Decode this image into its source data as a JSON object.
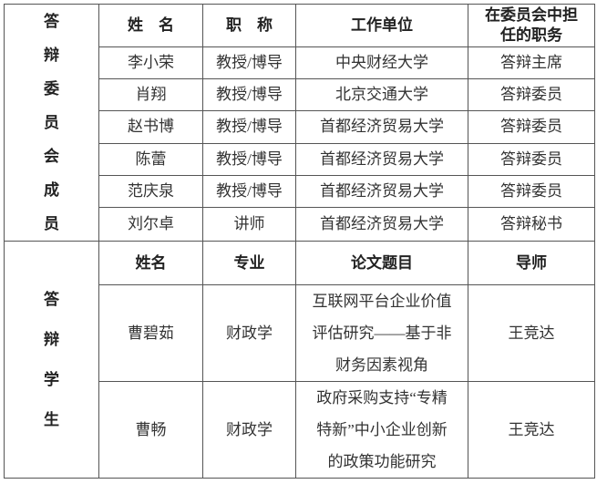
{
  "committee": {
    "section_label": [
      "答",
      "辩",
      "委",
      "员",
      "会",
      "成",
      "员"
    ],
    "headers": [
      "姓　名",
      "职　称",
      "工作单位",
      "在委员会中担任的职务"
    ],
    "rows": [
      [
        "李小荣",
        "教授/博导",
        "中央财经大学",
        "答辩主席"
      ],
      [
        "肖翔",
        "教授/博导",
        "北京交通大学",
        "答辩委员"
      ],
      [
        "赵书博",
        "教授/博导",
        "首都经济贸易大学",
        "答辩委员"
      ],
      [
        "陈蕾",
        "教授/博导",
        "首都经济贸易大学",
        "答辩委员"
      ],
      [
        "范庆泉",
        "教授/博导",
        "首都经济贸易大学",
        "答辩委员"
      ],
      [
        "刘尔卓",
        "讲师",
        "首都经济贸易大学",
        "答辩秘书"
      ]
    ]
  },
  "students": {
    "section_label": [
      "答",
      "辩",
      "学",
      "生"
    ],
    "headers": [
      "姓名",
      "专业",
      "论文题目",
      "导师"
    ],
    "rows": [
      {
        "name": "曹碧茹",
        "major": "财政学",
        "thesis": [
          "互联网平台企业价值",
          "评估研究——基于非",
          "财务因素视角"
        ],
        "advisor": "王竞达"
      },
      {
        "name": "曹畅",
        "major": "财政学",
        "thesis": [
          "政府采购支持“专精",
          "特新”中小企业创新",
          "的政策功能研究"
        ],
        "advisor": "王竞达"
      }
    ]
  }
}
